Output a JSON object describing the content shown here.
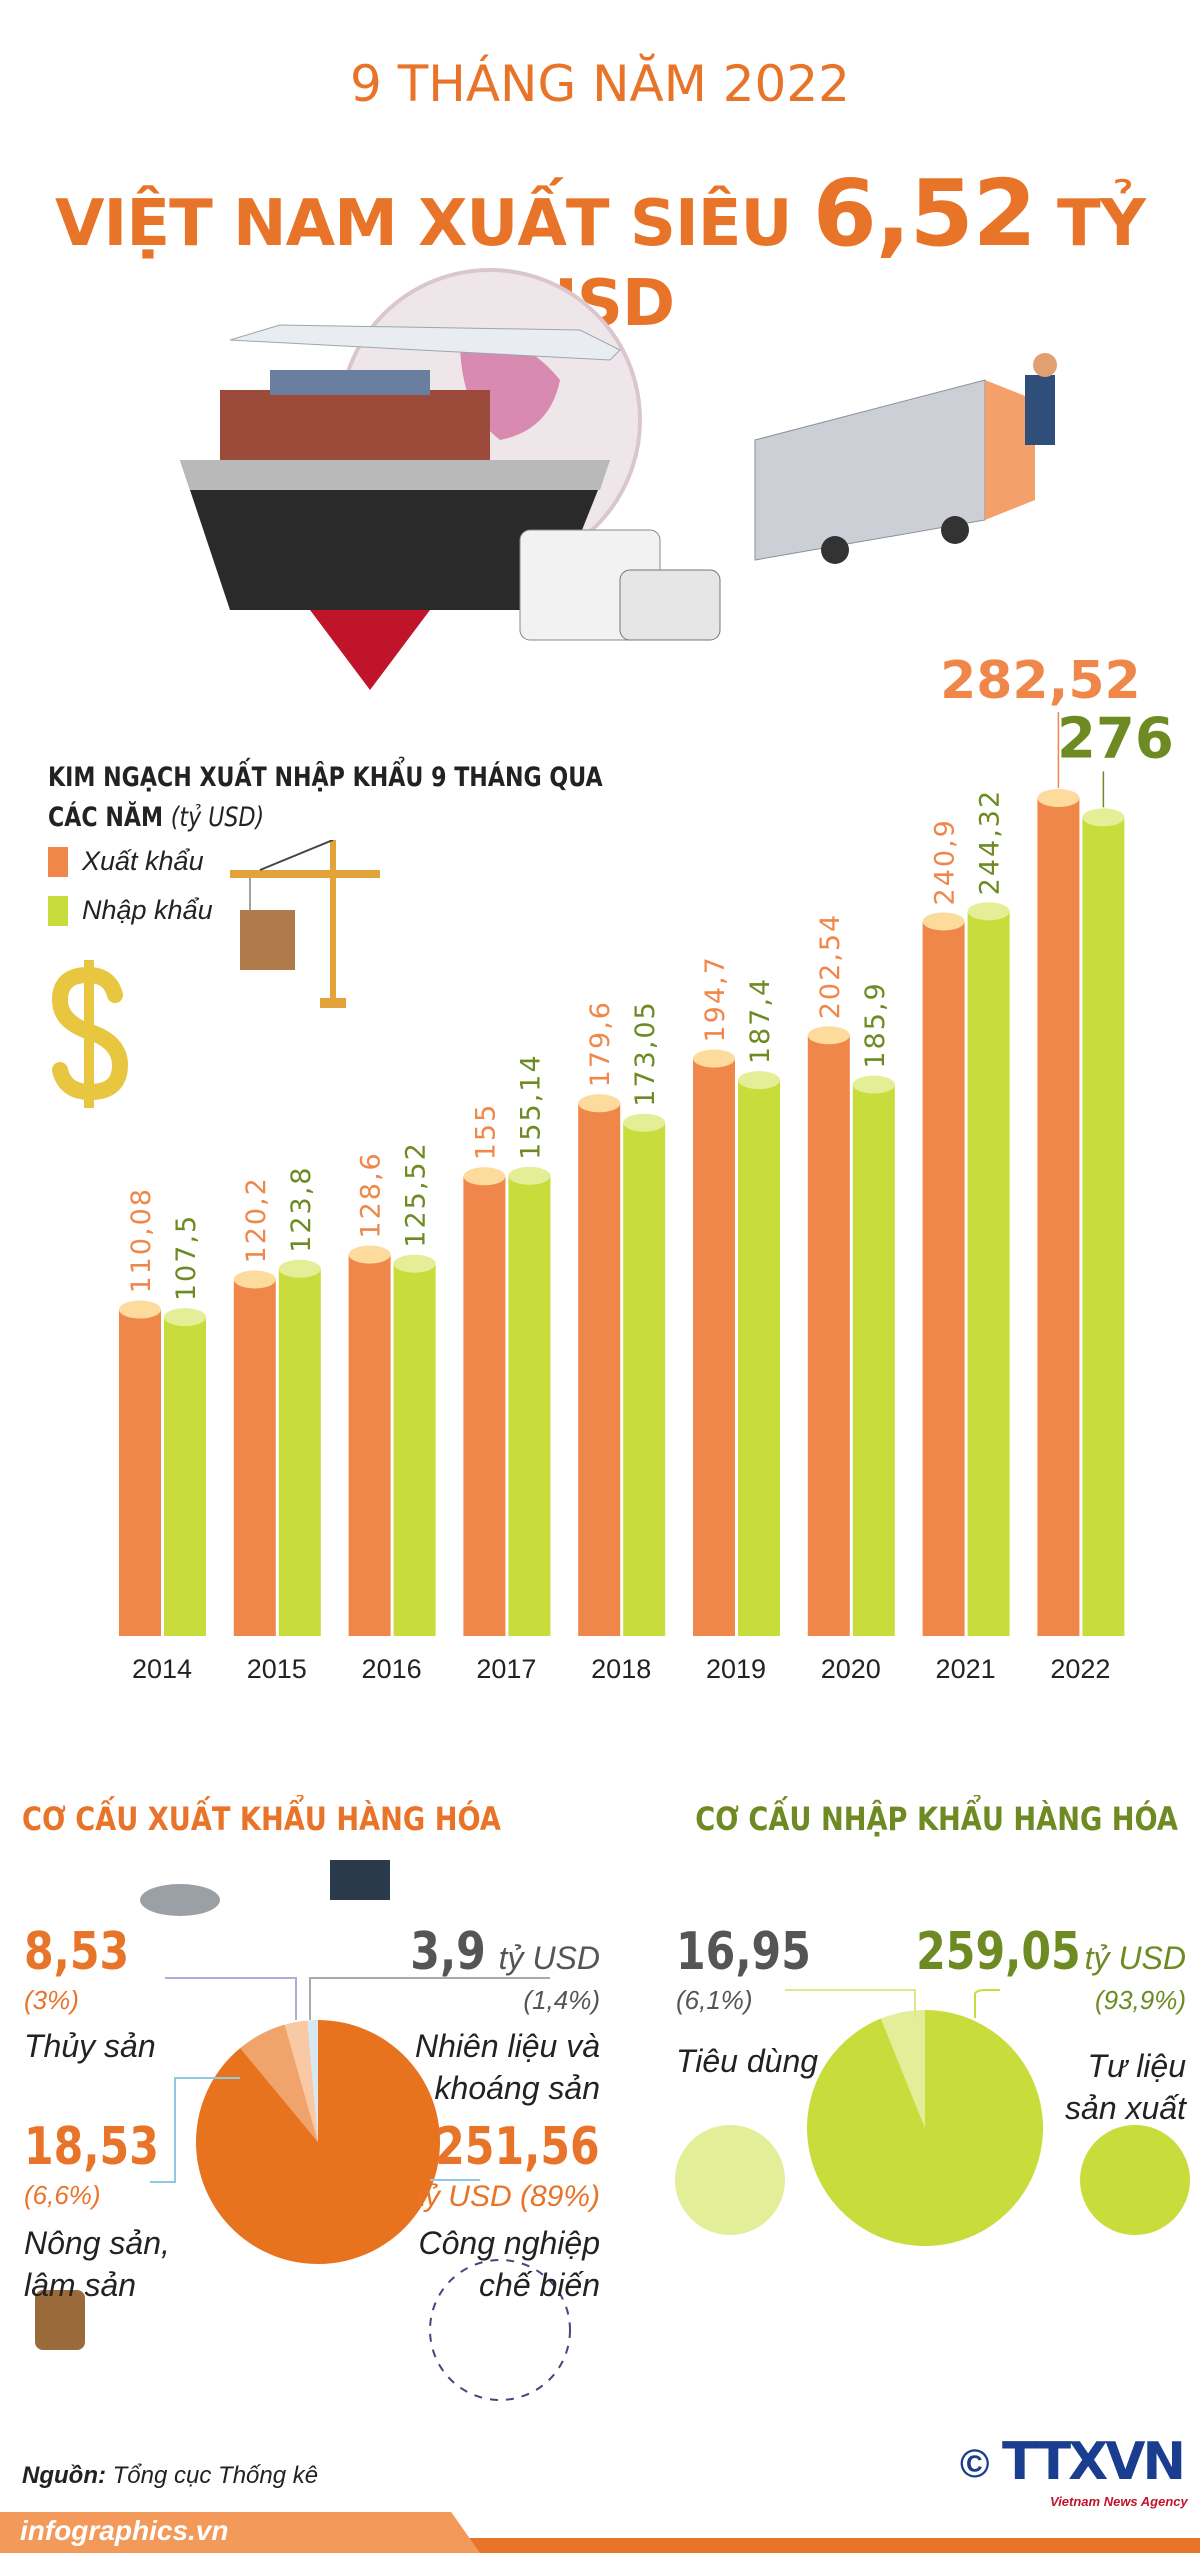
{
  "header": {
    "subtitle": "9 THÁNG NĂM 2022",
    "title_pre": "VIỆT NAM XUẤT SIÊU ",
    "title_value": "6,52",
    "title_post": " TỶ USD"
  },
  "colors": {
    "export": "#f0874a",
    "export_cap": "#fddb9c",
    "import": "#c8dc3c",
    "import_cap": "#e3ee96",
    "accent": "#e8742a",
    "olive": "#6e8a22"
  },
  "chart_data": {
    "type": "bar",
    "title": "KIM NGẠCH XUẤT NHẬP KHẨU 9 THÁNG QUA CÁC NĂM",
    "unit": "(tỷ USD)",
    "categories": [
      "2014",
      "2015",
      "2016",
      "2017",
      "2018",
      "2019",
      "2020",
      "2021",
      "2022"
    ],
    "series": [
      {
        "name": "Xuất khẩu",
        "values": [
          110.08,
          120.2,
          128.6,
          155,
          179.6,
          194.7,
          202.54,
          240.9,
          282.52
        ],
        "labels": [
          "110,08",
          "120,2",
          "128,6",
          "155",
          "179,6",
          "194,7",
          "202,54",
          "240,9",
          "282,52"
        ]
      },
      {
        "name": "Nhập khẩu",
        "values": [
          107.5,
          123.8,
          125.52,
          155.14,
          173.05,
          187.4,
          185.9,
          244.32,
          276
        ],
        "labels": [
          "107,5",
          "123,8",
          "125,52",
          "155,14",
          "173,05",
          "187,4",
          "185,9",
          "244,32",
          "276"
        ]
      }
    ],
    "ylim": [
      0,
      300
    ],
    "legend": "top-left"
  },
  "export_structure": {
    "title": "CƠ CẤU XUẤT KHẨU HÀNG HÓA",
    "type": "pie",
    "slices": [
      {
        "name": "Công nghiệp chế biến",
        "value": 251.56,
        "value_label": "251,56",
        "unit": "tỷ USD",
        "pct": "(89%)",
        "percent": 89,
        "color": "#e8731f"
      },
      {
        "name": "Nông sản, lâm sản",
        "value": 18.53,
        "value_label": "18,53",
        "pct": "(6,6%)",
        "percent": 6.6,
        "color": "#f0a36a"
      },
      {
        "name": "Thủy sản",
        "value": 8.53,
        "value_label": "8,53",
        "pct": "(3%)",
        "percent": 3,
        "color": "#f8c9a4"
      },
      {
        "name": "Nhiên liệu và khoáng sản",
        "value": 3.9,
        "value_label": "3,9",
        "unit": "tỷ USD",
        "pct": "(1,4%)",
        "percent": 1.4,
        "color": "#d7e8f0"
      }
    ],
    "label_lines": {
      "thuy_san": "Thủy sản",
      "nong_san_1": "Nông sản,",
      "nong_san_2": "lâm sản",
      "nhien_lieu_1": "Nhiên liệu và",
      "nhien_lieu_2": "khoáng sản",
      "cn_1": "Công nghiệp",
      "cn_2": "chế biến"
    }
  },
  "import_structure": {
    "title": "CƠ CẤU NHẬP KHẨU HÀNG HÓA",
    "type": "pie",
    "slices": [
      {
        "name": "Tư liệu sản xuất",
        "value": 259.05,
        "value_label": "259,05",
        "unit": "tỷ USD",
        "pct": "(93,9%)",
        "percent": 93.9,
        "color": "#c8dc3c"
      },
      {
        "name": "Tiêu dùng",
        "value": 16.95,
        "value_label": "16,95",
        "pct": "(6,1%)",
        "percent": 6.1,
        "color": "#e2ee98"
      }
    ],
    "label_lines": {
      "tieu_dung": "Tiêu dùng",
      "tlsx_1": "Tư liệu",
      "tlsx_2": "sản xuất"
    }
  },
  "source": {
    "label": "Nguồn:",
    "value": "Tổng cục Thống kê"
  },
  "footer": {
    "site": "infographics.vn",
    "logo": "TTXVN",
    "logo_sub": "Vietnam News Agency",
    "copyright": "©"
  }
}
